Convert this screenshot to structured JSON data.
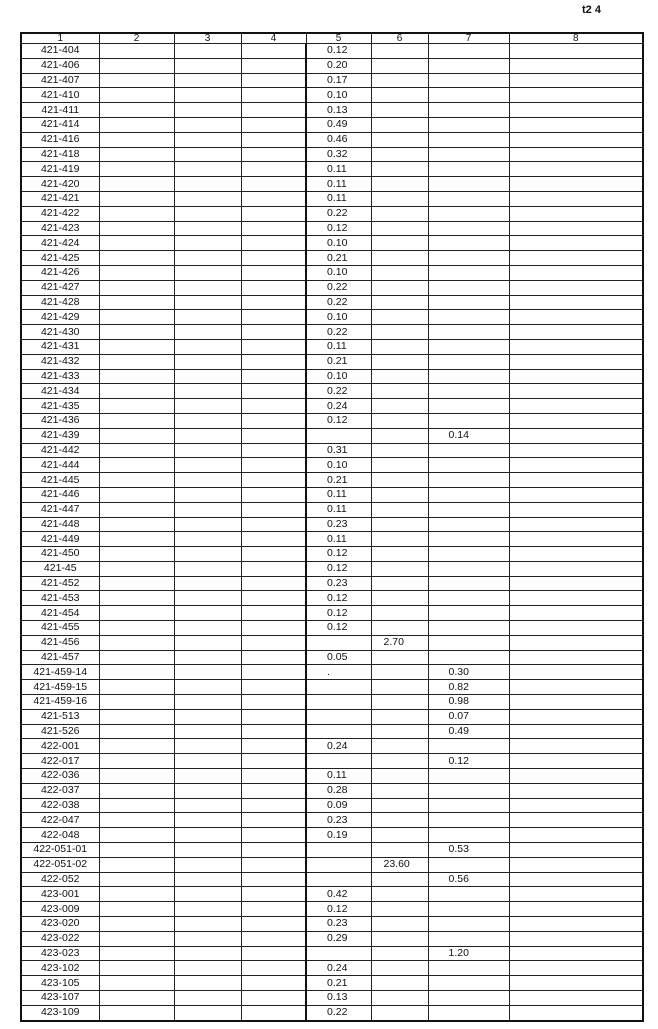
{
  "page_label": "t2 4",
  "headers": [
    "1",
    "2",
    "3",
    "4",
    "5",
    "6",
    "7",
    "8"
  ],
  "rows": [
    [
      "421-404",
      "0.12",
      "",
      ""
    ],
    [
      "421-406",
      "0.20",
      "",
      ""
    ],
    [
      "421-407",
      "0.17",
      "",
      ""
    ],
    [
      "421-410",
      "0.10",
      "",
      ""
    ],
    [
      "421-411",
      "0.13",
      "",
      ""
    ],
    [
      "421-414",
      "0.49",
      "",
      ""
    ],
    [
      "421-416",
      "0.46",
      "",
      ""
    ],
    [
      "421-418",
      "0.32",
      "",
      ""
    ],
    [
      "421-419",
      "0.11",
      "",
      ""
    ],
    [
      "421-420",
      "0.11",
      "",
      ""
    ],
    [
      "421-421",
      "0.11",
      "",
      ""
    ],
    [
      "421-422",
      "0.22",
      "",
      ""
    ],
    [
      "421-423",
      "0.12",
      "",
      ""
    ],
    [
      "421-424",
      "0.10",
      "",
      ""
    ],
    [
      "421-425",
      "0.21",
      "",
      ""
    ],
    [
      "421-426",
      "0.10",
      "",
      ""
    ],
    [
      "421-427",
      "0.22",
      "",
      ""
    ],
    [
      "421-428",
      "0.22",
      "",
      ""
    ],
    [
      "421-429",
      "0.10",
      "",
      ""
    ],
    [
      "421-430",
      "0.22",
      "",
      ""
    ],
    [
      "421-431",
      "0.11",
      "",
      ""
    ],
    [
      "421-432",
      "0.21",
      "",
      ""
    ],
    [
      "421-433",
      "0.10",
      "",
      ""
    ],
    [
      "421-434",
      "0.22",
      "",
      ""
    ],
    [
      "421-435",
      "0.24",
      "",
      ""
    ],
    [
      "421-436",
      "0.12",
      "",
      ""
    ],
    [
      "421-439",
      "",
      "",
      "0.14"
    ],
    [
      "421-442",
      "0.31",
      "",
      ""
    ],
    [
      "421-444",
      "0.10",
      "",
      ""
    ],
    [
      "421-445",
      "0.21",
      "",
      ""
    ],
    [
      "421-446",
      "0.11",
      "",
      ""
    ],
    [
      "421-447",
      "0.11",
      "",
      ""
    ],
    [
      "421-448",
      "0.23",
      "",
      ""
    ],
    [
      "421-449",
      "0.11",
      "",
      ""
    ],
    [
      "421-450",
      "0.12",
      "",
      ""
    ],
    [
      "421-45",
      "0.12",
      "",
      ""
    ],
    [
      "421-452",
      "0.23",
      "",
      ""
    ],
    [
      "421-453",
      "0.12",
      "",
      ""
    ],
    [
      "421-454",
      "0.12",
      "",
      ""
    ],
    [
      "421-455",
      "0.12",
      "",
      ""
    ],
    [
      "421-456",
      "",
      "2.70",
      ""
    ],
    [
      "421-457",
      "0.05",
      "",
      ""
    ],
    [
      "421-459-14",
      ".",
      "",
      "0.30"
    ],
    [
      "421-459-15",
      "",
      "",
      "0.82"
    ],
    [
      "421-459-16",
      "",
      "",
      "0.98"
    ],
    [
      "421-513",
      "",
      "",
      "0.07"
    ],
    [
      "421-526",
      "",
      "",
      "0.49"
    ],
    [
      "422-001",
      "0.24",
      "",
      ""
    ],
    [
      "422-017",
      "",
      "",
      "0.12"
    ],
    [
      "422-036",
      "0.11",
      "",
      ""
    ],
    [
      "422-037",
      "0.28",
      "",
      ""
    ],
    [
      "422-038",
      "0.09",
      "",
      ""
    ],
    [
      "422-047",
      "0.23",
      "",
      ""
    ],
    [
      "422-048",
      "0.19",
      "",
      ""
    ],
    [
      "422-051-01",
      "",
      "",
      "0.53"
    ],
    [
      "422-051-02",
      "",
      "23.60",
      ""
    ],
    [
      "422-052",
      "",
      "",
      "0.56"
    ],
    [
      "423-001",
      "0.42",
      "",
      ""
    ],
    [
      "423-009",
      "0.12",
      "",
      ""
    ],
    [
      "423-020",
      "0.23",
      "",
      ""
    ],
    [
      "423-022",
      "0.29",
      "",
      ""
    ],
    [
      "423-023",
      "",
      "",
      "1.20"
    ],
    [
      "423-102",
      "0.24",
      "",
      ""
    ],
    [
      "423-105",
      "0.21",
      "",
      ""
    ],
    [
      "423-107",
      "0.13",
      "",
      ""
    ],
    [
      "423-109",
      "0.22",
      "",
      ""
    ]
  ]
}
